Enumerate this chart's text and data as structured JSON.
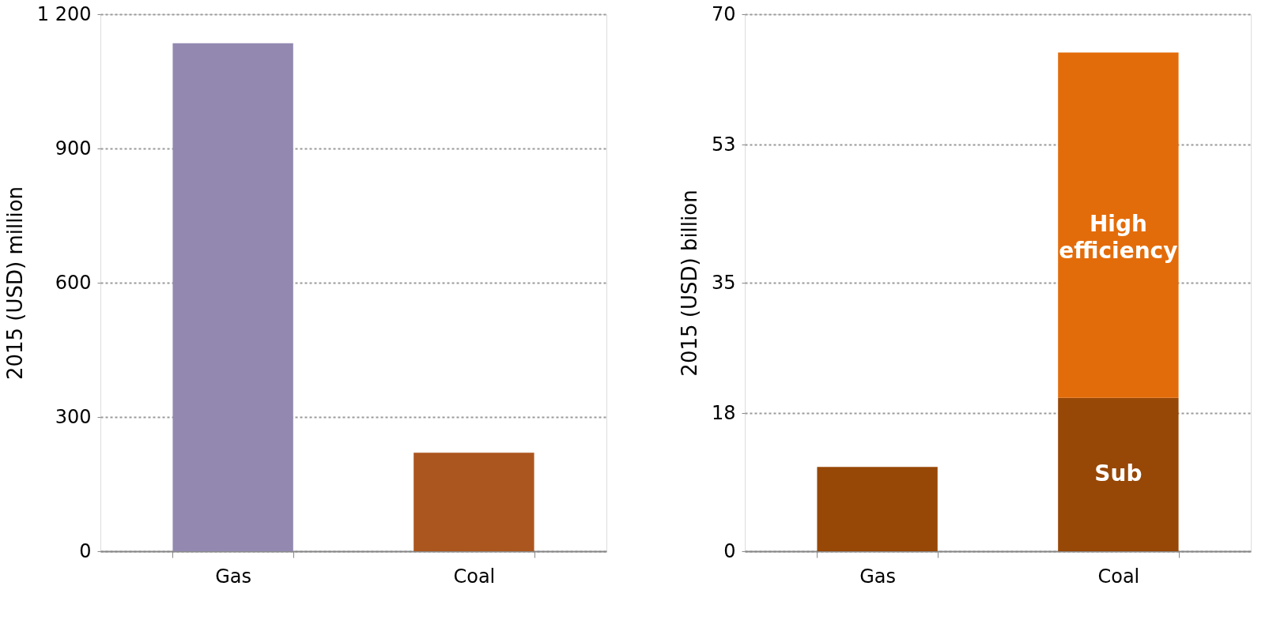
{
  "chart_data": [
    {
      "type": "bar",
      "categories": [
        "Gas",
        "Coal"
      ],
      "ylabel": "2015 (USD) million",
      "ylim": [
        0,
        1200
      ],
      "yticks": [
        0,
        300,
        600,
        900,
        {
          "value": 1200,
          "label": "1 200"
        }
      ],
      "grid": "y",
      "values": [
        1135,
        220
      ],
      "colors": [
        "#9389b0",
        "#ab561e"
      ]
    },
    {
      "type": "bar",
      "stacked": true,
      "categories": [
        "Gas",
        "Coal"
      ],
      "ylabel": "2015 (USD) billion",
      "ylim": [
        0,
        70
      ],
      "yticks": [
        0,
        18,
        35,
        53,
        70
      ],
      "grid": "y",
      "series": [
        {
          "color": "#974706",
          "values": [
            11,
            20
          ]
        },
        {
          "color": "#e36c0a",
          "values": [
            null,
            45
          ]
        }
      ],
      "annotations": [
        "Sub",
        "High efficiency"
      ]
    }
  ]
}
